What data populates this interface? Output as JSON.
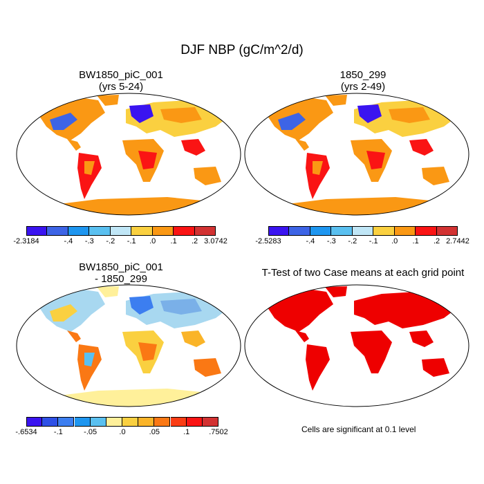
{
  "title": "DJF NBP (gC/m^2/d)",
  "panels": [
    {
      "id": "p1",
      "title_line1": "BW1850_piC_001",
      "title_line2": "(yrs 5-24)"
    },
    {
      "id": "p2",
      "title_line1": "1850_299",
      "title_line2": "(yrs 2-49)"
    },
    {
      "id": "p3",
      "title_line1": "BW1850_piC_001",
      "title_line2": "- 1850_299"
    },
    {
      "id": "p4",
      "title_line1": "T-Test of two Case means at each grid point",
      "title_line2": ""
    }
  ],
  "colorbars": {
    "cb1": {
      "colors": [
        "#3a14f0",
        "#3d64e6",
        "#1e96f0",
        "#5ac0f0",
        "#c0e6f6",
        "#fad040",
        "#fa9814",
        "#fa1414",
        "#d23232"
      ],
      "labels": [
        "-2.3184",
        "-.4",
        "-.3",
        "-.2",
        "-.1",
        ".0",
        ".1",
        ".2",
        "3.0742"
      ]
    },
    "cb2": {
      "colors": [
        "#3a14f0",
        "#3d64e6",
        "#1e96f0",
        "#5ac0f0",
        "#c0e6f6",
        "#fad040",
        "#fa9814",
        "#fa1414",
        "#d23232"
      ],
      "labels": [
        "-2.5283",
        "-.4",
        "-.3",
        "-.2",
        "-.1",
        ".0",
        ".1",
        ".2",
        "2.7442"
      ]
    },
    "cb3": {
      "colors": [
        "#3a14f0",
        "#2e50e6",
        "#3c7ef0",
        "#1e96f0",
        "#5ac0f0",
        "#fff09a",
        "#fad040",
        "#fab428",
        "#fa7814",
        "#fa3c14",
        "#fa1414",
        "#d23232"
      ],
      "labels": [
        "-.6534",
        "-.1",
        "-.05",
        ".0",
        ".05",
        ".1",
        ".7502"
      ]
    }
  },
  "significance_note": "Cells are significant at 0.1 level",
  "map_colors": {
    "panel1": {
      "north": "#fa9814",
      "boreal": "#3d64e6",
      "tropics": "#fa1414",
      "antarctica": "#fa9814"
    },
    "panel3": {
      "north": "#a8d8f0",
      "boreal": "#7ab0e8",
      "tropics": "#fa7814",
      "antarctica": "#fff09a"
    },
    "panel4": {
      "land": "#ee0000"
    }
  }
}
